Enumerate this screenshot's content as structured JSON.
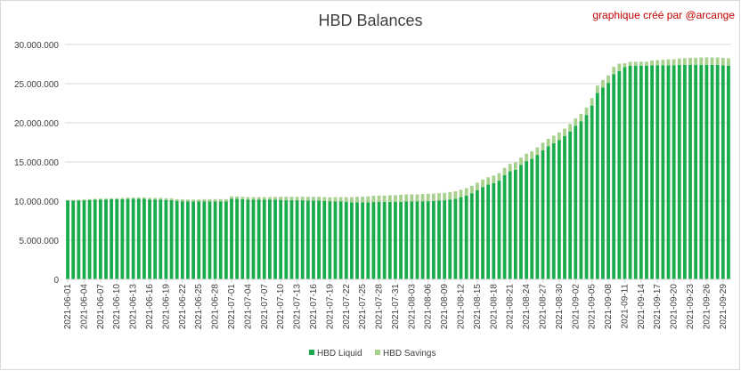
{
  "chart_data": {
    "type": "bar",
    "stacked": true,
    "title": "HBD Balances",
    "credit": "graphique créé par @arcange",
    "xlabel": "",
    "ylabel": "",
    "ylim": [
      0,
      30000000
    ],
    "y_ticks": [
      "0",
      "5.000.000",
      "10.000.000",
      "15.000.000",
      "20.000.000",
      "25.000.000",
      "30.000.000"
    ],
    "y_tick_values": [
      0,
      5000000,
      10000000,
      15000000,
      20000000,
      25000000,
      30000000
    ],
    "grid": "horizontal",
    "legend_position": "bottom",
    "x_tick_labels": [
      "2021-06-01",
      "2021-06-04",
      "2021-06-07",
      "2021-06-10",
      "2021-06-13",
      "2021-06-16",
      "2021-06-19",
      "2021-06-22",
      "2021-06-25",
      "2021-06-28",
      "2021-07-01",
      "2021-07-04",
      "2021-07-07",
      "2021-07-10",
      "2021-07-13",
      "2021-07-16",
      "2021-07-19",
      "2021-07-22",
      "2021-07-25",
      "2021-07-28",
      "2021-07-31",
      "2021-08-03",
      "2021-08-06",
      "2021-08-09",
      "2021-08-12",
      "2021-08-15",
      "2021-08-18",
      "2021-08-21",
      "2021-08-24",
      "2021-08-27",
      "2021-08-30",
      "2021-09-02",
      "2021-09-05",
      "2021-09-08",
      "2021-09-11",
      "2021-09-14",
      "2021-09-17",
      "2021-09-20",
      "2021-09-23",
      "2021-09-26",
      "2021-09-29"
    ],
    "categories_start": "2021-06-01",
    "categories_end": "2021-09-30",
    "series": [
      {
        "name": "HBD Liquid",
        "color": "#1aab4b",
        "values": [
          10050000,
          10050000,
          10080000,
          10100000,
          10150000,
          10180000,
          10200000,
          10200000,
          10250000,
          10250000,
          10250000,
          10280000,
          10300000,
          10300000,
          10300000,
          10200000,
          10200000,
          10200000,
          10150000,
          10100000,
          10000000,
          9980000,
          9950000,
          9950000,
          9950000,
          9950000,
          9950000,
          9950000,
          9950000,
          9950000,
          10300000,
          10300000,
          10250000,
          10200000,
          10200000,
          10200000,
          10200000,
          10200000,
          10180000,
          10150000,
          10100000,
          10100000,
          10100000,
          10100000,
          10050000,
          10050000,
          10050000,
          10000000,
          9980000,
          9950000,
          9950000,
          9900000,
          9850000,
          9850000,
          9850000,
          9850000,
          9880000,
          9900000,
          9900000,
          9900000,
          9900000,
          9900000,
          9950000,
          9950000,
          9950000,
          9950000,
          9980000,
          10000000,
          10050000,
          10100000,
          10200000,
          10300000,
          10500000,
          10700000,
          11000000,
          11400000,
          11800000,
          12100000,
          12300000,
          12600000,
          13300000,
          13800000,
          14000000,
          14600000,
          15100000,
          15400000,
          15900000,
          16500000,
          17000000,
          17400000,
          17800000,
          18300000,
          18900000,
          19600000,
          20200000,
          21000000,
          22200000,
          23800000,
          24500000,
          25100000,
          26200000,
          26600000,
          27100000,
          27300000,
          27300000,
          27300000,
          27300000,
          27350000,
          27350000,
          27350000,
          27350000,
          27350000,
          27400000,
          27400000,
          27400000,
          27400000,
          27400000,
          27400000,
          27400000,
          27400000,
          27350000,
          27300000
        ]
      },
      {
        "name": "HBD Savings",
        "color": "#a9d18e",
        "values": [
          100000,
          100000,
          100000,
          100000,
          100000,
          100000,
          120000,
          120000,
          120000,
          120000,
          150000,
          150000,
          150000,
          150000,
          150000,
          200000,
          200000,
          200000,
          200000,
          250000,
          250000,
          250000,
          250000,
          250000,
          250000,
          300000,
          300000,
          300000,
          300000,
          300000,
          300000,
          300000,
          300000,
          300000,
          300000,
          300000,
          300000,
          300000,
          350000,
          400000,
          450000,
          450000,
          450000,
          450000,
          500000,
          500000,
          500000,
          500000,
          500000,
          550000,
          550000,
          600000,
          650000,
          700000,
          700000,
          750000,
          800000,
          800000,
          800000,
          850000,
          850000,
          900000,
          900000,
          900000,
          900000,
          950000,
          950000,
          950000,
          950000,
          950000,
          950000,
          950000,
          950000,
          950000,
          950000,
          950000,
          950000,
          950000,
          950000,
          950000,
          950000,
          950000,
          950000,
          950000,
          950000,
          950000,
          950000,
          950000,
          950000,
          950000,
          950000,
          950000,
          950000,
          950000,
          950000,
          950000,
          950000,
          950000,
          950000,
          950000,
          950000,
          950000,
          500000,
          500000,
          500000,
          500000,
          500000,
          600000,
          650000,
          700000,
          750000,
          750000,
          800000,
          850000,
          900000,
          900000,
          950000,
          950000,
          950000,
          950000,
          950000,
          950000
        ]
      }
    ]
  }
}
